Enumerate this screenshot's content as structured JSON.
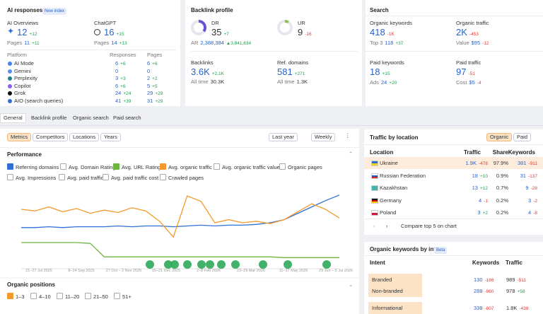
{
  "ai_responses": {
    "title": "AI responses",
    "badge": "New index",
    "summary": [
      {
        "label": "AI Overviews",
        "value": 12,
        "change": "+12",
        "pages": {
          "label": "Pages",
          "value": 11,
          "change": "+11"
        }
      },
      {
        "label": "ChatGPT",
        "value": 16,
        "change": "+15",
        "pages": {
          "label": "Pages",
          "value": 14,
          "change": "+13"
        }
      }
    ],
    "table": {
      "headers": [
        "Platform",
        "Responses",
        "Pages"
      ],
      "rows": [
        {
          "platform": "AI Mode",
          "responses": 6,
          "responses_change": "+6",
          "pages": 6,
          "pages_change": "+6"
        },
        {
          "platform": "Gemini",
          "responses": 0,
          "pages": 0
        },
        {
          "platform": "Perplexity",
          "responses": 3,
          "responses_change": "+3",
          "pages": 2,
          "pages_change": "+2"
        },
        {
          "platform": "Copilot",
          "responses": 6,
          "responses_change": "+6",
          "pages": 5,
          "pages_change": "+5"
        },
        {
          "platform": "Grok",
          "responses": 24,
          "responses_change": "+24",
          "pages": 29,
          "pages_change": "+29"
        },
        {
          "platform": "AIO (search queries)",
          "responses": 41,
          "responses_change": "+39",
          "pages": 31,
          "pages_change": "+29"
        }
      ]
    }
  },
  "backlink_profile": {
    "title": "Backlink profile",
    "ratings": [
      {
        "label": "DR",
        "value": 35,
        "change": "+7"
      },
      {
        "label": "UR",
        "value": 9,
        "change": "-16"
      }
    ],
    "ar": {
      "label": "AR",
      "value": "2,388,384",
      "change": "▲3,841,634"
    },
    "metrics": [
      {
        "label": "Backlinks",
        "value": "3.6K",
        "change": "+2.1K",
        "sub": {
          "label": "All time",
          "value": "30.3K"
        }
      },
      {
        "label": "Ref. domains",
        "value": 581,
        "change": "+271",
        "sub": {
          "label": "All time",
          "value": "1.3K"
        }
      }
    ]
  },
  "search": {
    "title": "Search",
    "metrics": [
      {
        "label": "Organic keywords",
        "value": 418,
        "change": "-1K",
        "sub": {
          "label": "Top 3",
          "value": 118,
          "change": "+37"
        }
      },
      {
        "label": "Organic traffic",
        "value": "2K",
        "change": "-453",
        "sub": {
          "label": "Value",
          "value": "$95",
          "change": "-12"
        }
      },
      {
        "label": "Paid keywords",
        "value": 18,
        "change": "+15",
        "sub": {
          "label": "Ads",
          "value": 24,
          "change": "+20"
        }
      },
      {
        "label": "Paid traffic",
        "value": 97,
        "change": "-51",
        "sub": {
          "label": "Cost",
          "value": "$5",
          "change": "-4"
        }
      }
    ]
  },
  "tabs": [
    "General",
    "Backlink profile",
    "Organic search",
    "Paid search"
  ],
  "controls": {
    "left": [
      "Metrics",
      "Competitors",
      "Locations",
      "Years"
    ],
    "right": [
      "Last year",
      "Weekly"
    ]
  },
  "performance": {
    "title": "Performance",
    "options": [
      {
        "label": "Referring domains",
        "checked": true,
        "color": "#2f6fd6"
      },
      {
        "label": "Avg. Domain Rating",
        "checked": false
      },
      {
        "label": "Avg. URL Rating",
        "checked": true,
        "color": "#6cb33f"
      },
      {
        "label": "Avg. organic traffic",
        "checked": true,
        "color": "#f39a2b"
      },
      {
        "label": "Avg. organic traffic value",
        "checked": false
      },
      {
        "label": "Organic pages",
        "checked": false
      },
      {
        "label": "Avg. Impressions",
        "checked": false
      },
      {
        "label": "Avg. paid traffic",
        "checked": false
      },
      {
        "label": "Avg. paid traffic cost",
        "checked": false
      },
      {
        "label": "Crawled pages",
        "checked": false
      }
    ]
  },
  "chart_data": {
    "type": "line",
    "ylim": [
      0,
      100
    ],
    "x_labels": [
      "21–27 Jul 2025",
      "8–14 Sep 2025",
      "27 Oct – 2 Nov 2025",
      "15–21 Dec 2025",
      "2–8 Feb 2026",
      "23–29 Mar 2026",
      "11–17 May 2026",
      "29 Jun – 5 Jul 2026"
    ],
    "series": [
      {
        "color": "#2f6fd6",
        "values": [
          52,
          52,
          53,
          52,
          53,
          53,
          53,
          54,
          53,
          54,
          54,
          53,
          54,
          55,
          54,
          55,
          55,
          56,
          58,
          62,
          70,
          78,
          86,
          93
        ]
      },
      {
        "color": "#f39a2b",
        "values": [
          75,
          73,
          78,
          72,
          76,
          70,
          74,
          71,
          77,
          73,
          60,
          40,
          92,
          85,
          58,
          62,
          58,
          60,
          57,
          62,
          72,
          82,
          75,
          64
        ]
      },
      {
        "color": "#6cb33f",
        "values": [
          33,
          33,
          33,
          33,
          33,
          32,
          15,
          15,
          15,
          15,
          15,
          15,
          15,
          15,
          15,
          15,
          15,
          15,
          15,
          14,
          14,
          14,
          14,
          14
        ]
      }
    ]
  },
  "organic_positions": {
    "title": "Organic positions",
    "options": [
      {
        "label": "1–3",
        "checked": true
      },
      {
        "label": "4–10",
        "checked": false
      },
      {
        "label": "11–20",
        "checked": false
      },
      {
        "label": "21–50",
        "checked": false
      },
      {
        "label": "51+",
        "checked": false
      }
    ]
  },
  "traffic_by_location": {
    "title": "Traffic by location",
    "toggles": [
      "Organic",
      "Paid"
    ],
    "headers": [
      "Location",
      "Traffic",
      "Share",
      "Keywords"
    ],
    "rows": [
      {
        "location": "Ukraine",
        "traffic": "1.9K",
        "traffic_change": "-478",
        "share": "97.9%",
        "keywords": 381,
        "keywords_change": "-911"
      },
      {
        "location": "Russian Federation",
        "traffic": 18,
        "traffic_change": "+10",
        "share": "0.9%",
        "keywords": 31,
        "keywords_change": "-137"
      },
      {
        "location": "Kazakhstan",
        "traffic": 13,
        "traffic_change": "+12",
        "share": "0.7%",
        "keywords": 9,
        "keywords_change": "-28"
      },
      {
        "location": "Germany",
        "traffic": 4,
        "traffic_change": "-1",
        "share": "0.2%",
        "keywords": 3,
        "keywords_change": "-2"
      },
      {
        "location": "Poland",
        "traffic": 3,
        "traffic_change": "+2",
        "share": "0.2%",
        "keywords": 4,
        "keywords_change": "-8"
      }
    ],
    "compare": "Compare top 5 on chart"
  },
  "keywords_by_intent": {
    "title": "Organic keywords by intent",
    "badge": "Beta",
    "headers": [
      "Intent",
      "Keywords",
      "Traffic"
    ],
    "rows": [
      {
        "intent": "Branded",
        "keywords": 130,
        "keywords_change": "-186",
        "traffic": 989,
        "traffic_change": "-511"
      },
      {
        "intent": "Non-branded",
        "keywords": 288,
        "keywords_change": "-960",
        "traffic": 978,
        "traffic_change": "+58"
      },
      {
        "intent": "Informational",
        "keywords": 338,
        "keywords_change": "-807",
        "traffic": "1.8K",
        "traffic_change": "-438"
      }
    ]
  }
}
